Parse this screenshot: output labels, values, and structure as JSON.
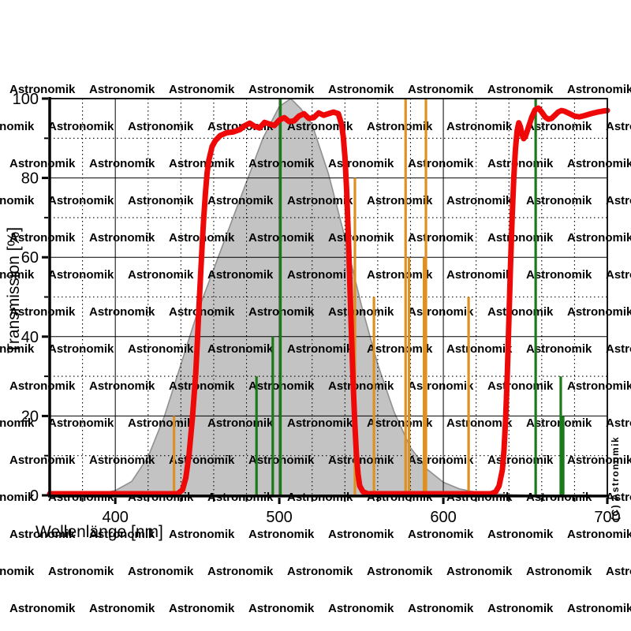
{
  "watermark": {
    "text": "Astronomik",
    "color": "#ddd4d4"
  },
  "copyright_label": "(C) Astronomik",
  "chart_data": {
    "type": "line",
    "title": "",
    "xlabel": "Wellenlänge [nm]",
    "ylabel": "Transmission [%]",
    "xlim": [
      360,
      700
    ],
    "ylim": [
      0,
      100
    ],
    "x_major_ticks": [
      400,
      500,
      600,
      700
    ],
    "x_minor_step": 20,
    "y_major_ticks": [
      0,
      20,
      40,
      60,
      80,
      100
    ],
    "y_minor_step": 10,
    "grid": {
      "major": "solid",
      "minor": "dotted"
    },
    "legend": "none",
    "colors": {
      "filter_curve": "#ee0808",
      "eye_area_fill": "#c3c3c3",
      "eye_area_stroke": "#8f8f8f",
      "orange_line": "#dd9122",
      "green_line": "#1a7a1a",
      "axis": "#000000"
    },
    "series": [
      {
        "name": "filter-transmission",
        "type": "line",
        "color_key": "filter_curve",
        "points": [
          [
            360,
            0
          ],
          [
            438,
            0
          ],
          [
            441,
            1
          ],
          [
            443,
            4
          ],
          [
            445,
            10
          ],
          [
            447,
            19
          ],
          [
            449,
            30
          ],
          [
            450,
            38
          ],
          [
            451,
            47
          ],
          [
            452,
            55
          ],
          [
            453,
            63
          ],
          [
            454,
            70
          ],
          [
            455,
            76
          ],
          [
            456,
            81
          ],
          [
            457,
            84
          ],
          [
            459,
            87.5
          ],
          [
            461,
            89
          ],
          [
            464,
            90.3
          ],
          [
            468,
            91
          ],
          [
            472,
            91.2
          ],
          [
            476,
            91.8
          ],
          [
            479,
            92.8
          ],
          [
            482,
            93.4
          ],
          [
            485,
            92.6
          ],
          [
            488,
            92.2
          ],
          [
            491,
            93.6
          ],
          [
            494,
            93.2
          ],
          [
            497,
            92.8
          ],
          [
            500,
            94.2
          ],
          [
            503,
            94.8
          ],
          [
            506,
            93.8
          ],
          [
            509,
            94
          ],
          [
            512,
            95.2
          ],
          [
            515,
            95.8
          ],
          [
            518,
            94.6
          ],
          [
            521,
            94.8
          ],
          [
            524,
            96
          ],
          [
            527,
            95.4
          ],
          [
            530,
            95.8
          ],
          [
            533,
            96.2
          ],
          [
            536,
            95.8
          ],
          [
            538,
            93
          ],
          [
            539,
            90
          ],
          [
            540,
            85
          ],
          [
            541,
            77
          ],
          [
            542,
            66
          ],
          [
            543,
            53
          ],
          [
            544,
            40
          ],
          [
            545,
            28
          ],
          [
            546,
            18
          ],
          [
            547,
            10
          ],
          [
            548,
            5
          ],
          [
            549,
            2
          ],
          [
            551,
            0.5
          ],
          [
            554,
            0
          ],
          [
            629,
            0
          ],
          [
            632,
            0.5
          ],
          [
            634,
            2
          ],
          [
            636,
            6
          ],
          [
            637,
            11
          ],
          [
            638,
            19
          ],
          [
            639,
            30
          ],
          [
            640,
            44
          ],
          [
            641,
            58
          ],
          [
            642,
            70
          ],
          [
            643,
            80
          ],
          [
            644,
            87
          ],
          [
            645,
            91.5
          ],
          [
            646,
            93.5
          ],
          [
            647,
            92.5
          ],
          [
            648,
            90.5
          ],
          [
            649,
            89.5
          ],
          [
            650,
            90
          ],
          [
            652,
            92.5
          ],
          [
            654,
            95
          ],
          [
            656,
            96.8
          ],
          [
            658,
            97.2
          ],
          [
            660,
            96.2
          ],
          [
            662,
            95
          ],
          [
            664,
            94.4
          ],
          [
            666,
            94.6
          ],
          [
            668,
            95.4
          ],
          [
            670,
            96.2
          ],
          [
            672,
            96.6
          ],
          [
            674,
            96.4
          ],
          [
            677,
            95.8
          ],
          [
            680,
            95.2
          ],
          [
            683,
            95
          ],
          [
            686,
            95.3
          ],
          [
            690,
            95.8
          ],
          [
            694,
            96.2
          ],
          [
            698,
            96.5
          ],
          [
            700,
            96.6
          ]
        ]
      },
      {
        "name": "dark-adapted-eye-sensitivity",
        "type": "area",
        "color_key": "eye_area_fill",
        "stroke_key": "eye_area_stroke",
        "points": [
          [
            376,
            0
          ],
          [
            385,
            0.3
          ],
          [
            395,
            0.8
          ],
          [
            400,
            1.2
          ],
          [
            410,
            3.5
          ],
          [
            420,
            9.7
          ],
          [
            430,
            20
          ],
          [
            440,
            33
          ],
          [
            450,
            46
          ],
          [
            460,
            57
          ],
          [
            470,
            68
          ],
          [
            480,
            79
          ],
          [
            490,
            90
          ],
          [
            500,
            98
          ],
          [
            507,
            100
          ],
          [
            513,
            97.5
          ],
          [
            520,
            93.5
          ],
          [
            530,
            81
          ],
          [
            540,
            65
          ],
          [
            550,
            48
          ],
          [
            560,
            33
          ],
          [
            570,
            21
          ],
          [
            580,
            12
          ],
          [
            590,
            6.6
          ],
          [
            600,
            3.3
          ],
          [
            610,
            1.6
          ],
          [
            620,
            0.8
          ],
          [
            630,
            0.4
          ],
          [
            642,
            0.15
          ],
          [
            655,
            0
          ]
        ]
      }
    ],
    "emission_lines": [
      {
        "nm": 435.8,
        "pct": 20,
        "color_key": "orange_line"
      },
      {
        "nm": 546.1,
        "pct": 80,
        "color_key": "orange_line"
      },
      {
        "nm": 557.7,
        "pct": 50,
        "color_key": "orange_line"
      },
      {
        "nm": 577.0,
        "pct": 100,
        "color_key": "orange_line"
      },
      {
        "nm": 579.1,
        "pct": 60,
        "color_key": "orange_line"
      },
      {
        "nm": 588.2,
        "pct": 60,
        "color_key": "orange_line"
      },
      {
        "nm": 589.4,
        "pct": 100,
        "color_key": "orange_line"
      },
      {
        "nm": 615.4,
        "pct": 50,
        "color_key": "orange_line"
      },
      {
        "nm": 486.1,
        "pct": 30,
        "color_key": "green_line"
      },
      {
        "nm": 496.0,
        "pct": 40,
        "color_key": "green_line"
      },
      {
        "nm": 500.7,
        "pct": 100,
        "color_key": "green_line"
      },
      {
        "nm": 656.3,
        "pct": 100,
        "color_key": "green_line"
      },
      {
        "nm": 671.6,
        "pct": 30,
        "color_key": "green_line"
      },
      {
        "nm": 673.1,
        "pct": 20,
        "color_key": "green_line"
      }
    ]
  }
}
